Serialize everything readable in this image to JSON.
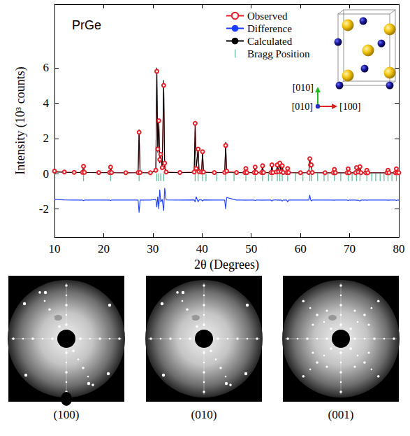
{
  "chart_data": {
    "type": "line",
    "title": "PrGe",
    "xlabel": "2θ (Degrees)",
    "ylabel": "Intensity (10³ counts)",
    "xlim": [
      10,
      80
    ],
    "xticks": [
      10,
      20,
      30,
      40,
      50,
      60,
      70,
      80
    ],
    "ylim": [
      -3.6,
      9.6
    ],
    "yticks": [
      -2,
      0,
      2,
      4,
      6
    ],
    "grid": false,
    "legend": "top",
    "x": [
      10,
      12,
      14,
      15.7,
      15.9,
      16.1,
      19,
      21.2,
      21.4,
      21.6,
      24.5,
      27.0,
      27.2,
      27.4,
      29.5,
      30.6,
      30.8,
      31.0,
      31.2,
      31.4,
      31.6,
      31.9,
      32.2,
      32.4,
      32.7,
      35.5,
      38.4,
      38.6,
      38.8,
      39.2,
      39.4,
      39.9,
      40.1,
      40.3,
      42.5,
      44.6,
      44.8,
      45.0,
      47,
      48.7,
      48.9,
      49.1,
      50.6,
      50.8,
      51.0,
      52.1,
      52.3,
      52.5,
      54.0,
      54.2,
      54.4,
      55.1,
      55.3,
      55.55,
      55.8,
      56.05,
      56.3,
      56.5,
      57.2,
      57.4,
      57.6,
      60,
      61.7,
      61.9,
      62.05,
      62.2,
      62.4,
      65,
      66.7,
      66.9,
      67.1,
      69.5,
      69.7,
      69.9,
      71.2,
      71.4,
      71.75,
      72.1,
      72.3,
      73.3,
      73.5,
      73.7,
      77.6,
      77.8,
      78.0,
      79.3,
      79.5,
      79.7,
      80
    ],
    "series": [
      {
        "name": "Observed",
        "type": "line",
        "marker": "open circle",
        "color": "#e8202a",
        "values": [
          0.15,
          0.1,
          0.08,
          0.08,
          0.42,
          0.08,
          0.07,
          0.07,
          0.38,
          0.07,
          0.06,
          0.07,
          2.35,
          0.07,
          0.06,
          0.2,
          5.8,
          1.4,
          3.0,
          0.8,
          1.1,
          0.35,
          5.0,
          0.6,
          0.1,
          0.07,
          0.1,
          2.85,
          0.3,
          1.4,
          0.12,
          0.1,
          1.25,
          0.1,
          0.07,
          0.08,
          1.6,
          0.15,
          0.07,
          0.07,
          0.3,
          0.07,
          0.07,
          0.38,
          0.07,
          0.07,
          0.45,
          0.07,
          0.07,
          0.5,
          0.07,
          0.1,
          0.5,
          0.12,
          0.6,
          0.12,
          0.45,
          0.07,
          0.07,
          0.3,
          0.07,
          0.06,
          0.07,
          0.85,
          0.5,
          0.5,
          0.07,
          0.06,
          0.06,
          0.25,
          0.06,
          0.06,
          0.28,
          0.06,
          0.06,
          0.35,
          0.1,
          0.4,
          0.06,
          0.06,
          0.2,
          0.06,
          0.06,
          0.2,
          0.06,
          0.06,
          0.28,
          0.06,
          0.06
        ]
      },
      {
        "name": "Difference",
        "type": "line",
        "marker": "none",
        "color": "#1a3cff",
        "values": [
          -1.45,
          -1.48,
          -1.49,
          -1.49,
          -1.53,
          -1.49,
          -1.49,
          -1.49,
          -1.52,
          -1.49,
          -1.49,
          -1.49,
          -2.2,
          -1.49,
          -1.49,
          -1.45,
          -1.9,
          -1.3,
          -2.0,
          -0.9,
          -1.6,
          -1.45,
          -2.1,
          -0.8,
          -1.48,
          -1.49,
          -1.48,
          -1.6,
          -1.3,
          -1.6,
          -1.48,
          -1.48,
          -1.55,
          -1.48,
          -1.49,
          -1.49,
          -2.0,
          -1.35,
          -1.49,
          -1.49,
          -1.5,
          -1.49,
          -1.49,
          -1.52,
          -1.49,
          -1.49,
          -1.5,
          -1.49,
          -1.49,
          -1.55,
          -1.49,
          -1.48,
          -1.5,
          -1.48,
          -1.5,
          -1.48,
          -1.55,
          -1.49,
          -1.49,
          -1.6,
          -1.49,
          -1.49,
          -1.49,
          -1.2,
          -1.45,
          -1.55,
          -1.49,
          -1.49,
          -1.49,
          -1.5,
          -1.49,
          -1.49,
          -1.52,
          -1.49,
          -1.49,
          -1.5,
          -1.5,
          -1.55,
          -1.49,
          -1.49,
          -1.5,
          -1.49,
          -1.49,
          -1.5,
          -1.49,
          -1.49,
          -1.52,
          -1.49,
          -1.49
        ]
      },
      {
        "name": "Calculated",
        "type": "line",
        "marker": "none",
        "color": "#000000",
        "values": [
          0.1,
          0.08,
          0.07,
          0.07,
          0.45,
          0.07,
          0.06,
          0.06,
          0.4,
          0.06,
          0.05,
          0.06,
          2.5,
          0.06,
          0.05,
          0.15,
          6.0,
          1.2,
          3.1,
          0.6,
          1.0,
          0.3,
          5.3,
          0.3,
          0.08,
          0.06,
          0.08,
          2.8,
          0.2,
          1.5,
          0.1,
          0.08,
          1.3,
          0.08,
          0.06,
          0.07,
          1.8,
          0.07,
          0.06,
          0.06,
          0.3,
          0.06,
          0.06,
          0.4,
          0.06,
          0.06,
          0.45,
          0.06,
          0.06,
          0.55,
          0.06,
          0.08,
          0.5,
          0.1,
          0.6,
          0.1,
          0.5,
          0.06,
          0.06,
          0.3,
          0.06,
          0.05,
          0.06,
          0.9,
          0.4,
          0.55,
          0.06,
          0.05,
          0.05,
          0.25,
          0.05,
          0.05,
          0.3,
          0.05,
          0.05,
          0.35,
          0.1,
          0.45,
          0.05,
          0.05,
          0.2,
          0.05,
          0.05,
          0.2,
          0.05,
          0.05,
          0.3,
          0.05,
          0.05
        ]
      },
      {
        "name": "Bragg Position",
        "type": "scatter",
        "marker": "vertical bar",
        "color": "#3aaa7a",
        "x": [
          15.9,
          21.4,
          27.2,
          30.8,
          31.2,
          31.6,
          32.2,
          38.6,
          39.2,
          40.1,
          40.8,
          43.0,
          44.8,
          46.5,
          48.9,
          50.8,
          52.3,
          53.5,
          54.2,
          55.3,
          55.8,
          56.3,
          57.4,
          59.0,
          60.5,
          61.9,
          62.2,
          63.5,
          64.8,
          65.6,
          66.9,
          68.2,
          69.7,
          70.5,
          71.4,
          72.1,
          73.5,
          74.5,
          75.3,
          76.2,
          77.0,
          77.8,
          78.6,
          79.5
        ],
        "values": [
          -0.2,
          -0.2,
          -0.2,
          -0.2,
          -0.2,
          -0.2,
          -0.2,
          -0.2,
          -0.2,
          -0.2,
          -0.2,
          -0.2,
          -0.2,
          -0.2,
          -0.2,
          -0.2,
          -0.2,
          -0.2,
          -0.2,
          -0.2,
          -0.2,
          -0.2,
          -0.2,
          -0.2,
          -0.2,
          -0.2,
          -0.2,
          -0.2,
          -0.2,
          -0.2,
          -0.2,
          -0.2,
          -0.2,
          -0.2,
          -0.2,
          -0.2,
          -0.2,
          -0.2,
          -0.2,
          -0.2,
          -0.2,
          -0.2,
          -0.2,
          -0.2
        ]
      }
    ]
  },
  "inset": {
    "axis_labels": [
      "[010]",
      "[010]",
      "[100]"
    ]
  },
  "laue_images": [
    {
      "label": "(100)"
    },
    {
      "label": "(010)"
    },
    {
      "label": "(001)"
    }
  ]
}
